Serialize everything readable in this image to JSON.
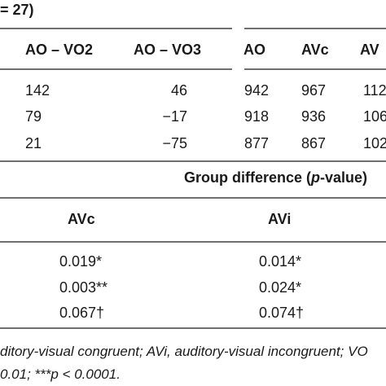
{
  "top_table": {
    "title_fragment": "= 27)",
    "headers": [
      "AO – VO2",
      "AO – VO3",
      "AO",
      "AVc",
      "AV"
    ],
    "rows": [
      [
        "142",
        "46",
        "942",
        "967",
        "112"
      ],
      [
        "79",
        "−17",
        "918",
        "936",
        "106"
      ],
      [
        "21",
        "−75",
        "877",
        "867",
        "102"
      ]
    ]
  },
  "bottom_table": {
    "group_title": "Group difference (p-value)",
    "group_title_pre": "Group difference (",
    "group_title_italic": "p",
    "group_title_post": "-value)",
    "headers": [
      "AVc",
      "AVi"
    ],
    "rows": [
      [
        "0.019*",
        "0.014*"
      ],
      [
        "0.003**",
        "0.024*"
      ],
      [
        "0.067†",
        "0.074†"
      ]
    ]
  },
  "footnotes": {
    "line1": "ditory-visual congruent; AVi, auditory-visual incongruent; VO",
    "line2": "0.01; ***p < 0.0001."
  },
  "colors": {
    "rule": "#6f6f6f",
    "text": "#1a1a1a"
  }
}
